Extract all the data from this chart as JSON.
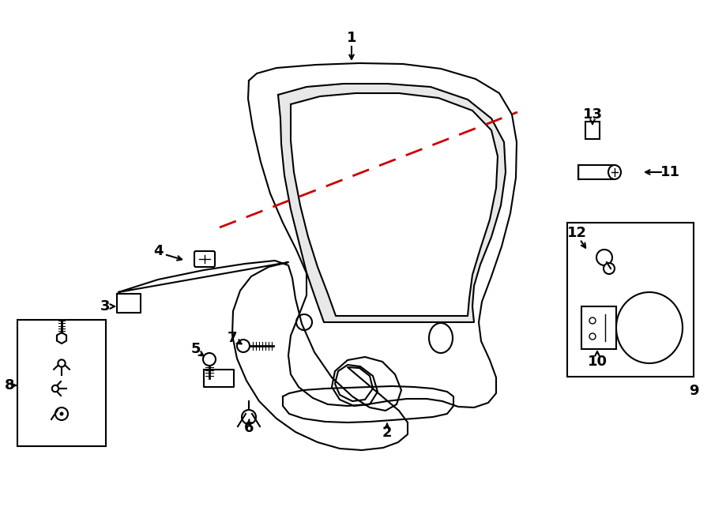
{
  "bg": "#ffffff",
  "lc": "#000000",
  "red": "#cc0000",
  "lw": 1.5,
  "lfs": 13,
  "fig_w": 9.0,
  "fig_h": 6.61,
  "dpi": 100
}
